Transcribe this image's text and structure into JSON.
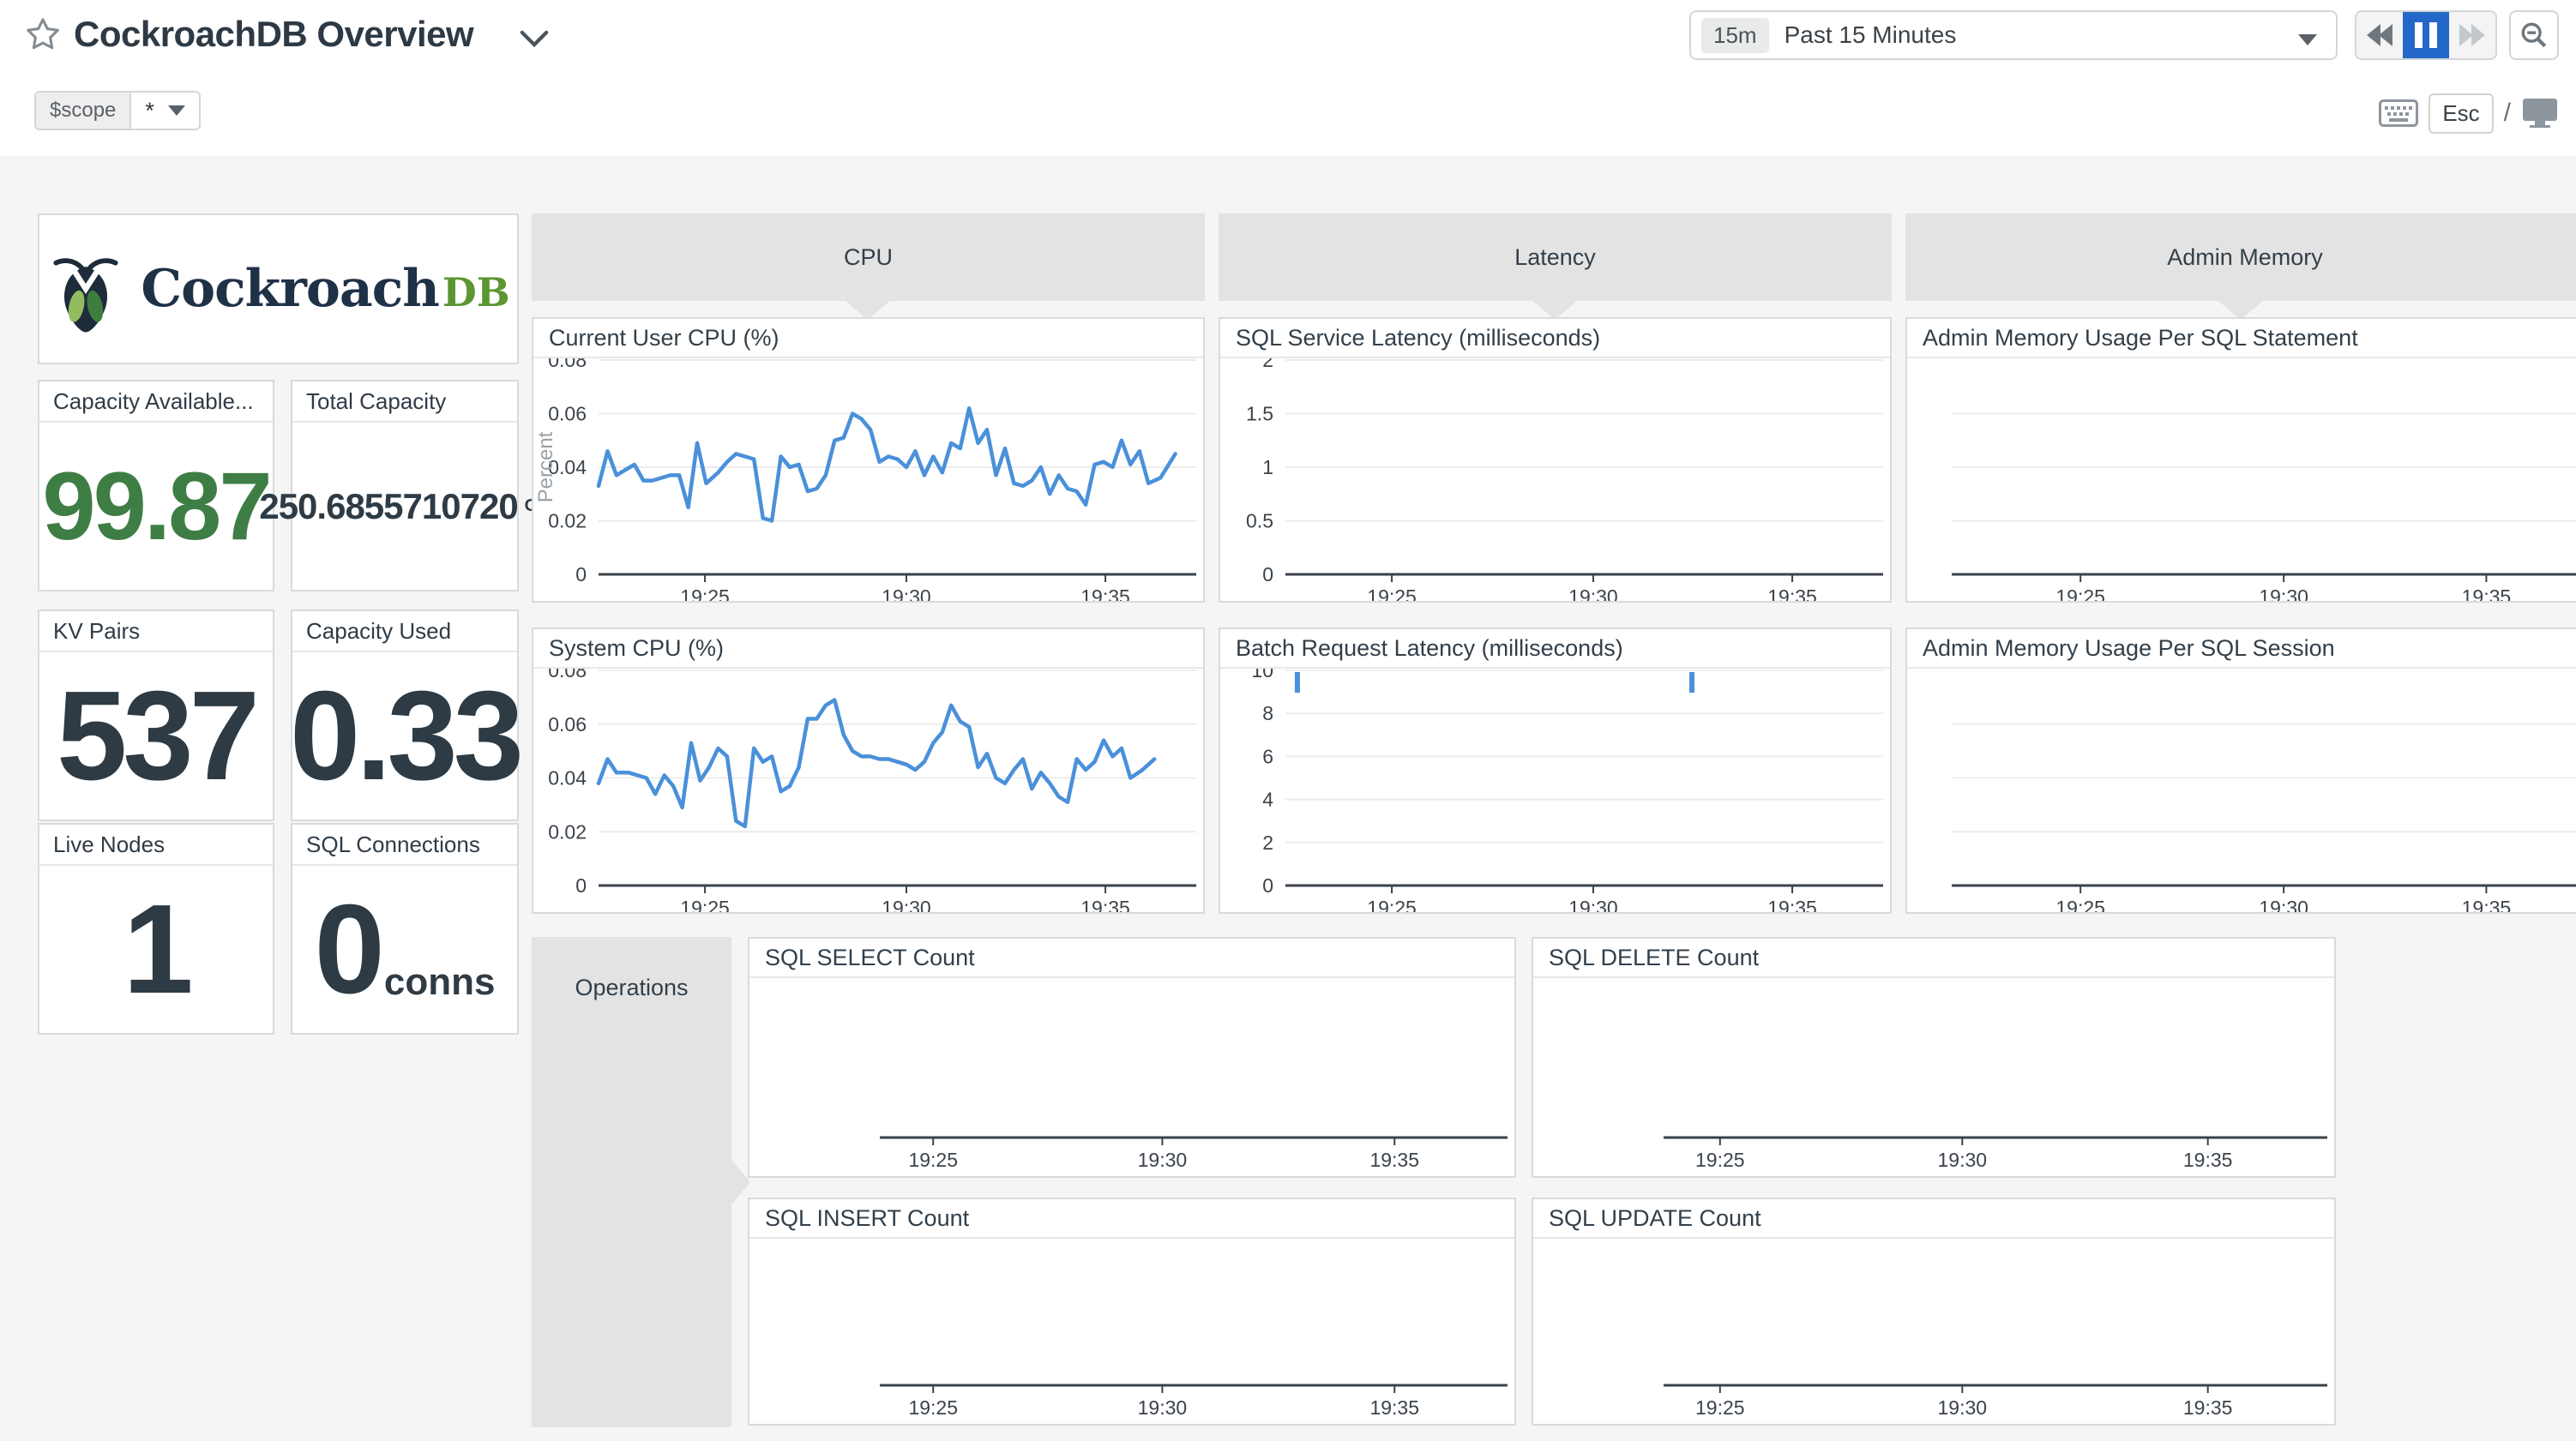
{
  "header": {
    "title": "CockroachDB Overview"
  },
  "scope": {
    "label": "$scope",
    "value": "*"
  },
  "time": {
    "badge": "15m",
    "label": "Past 15 Minutes"
  },
  "shortcuts": {
    "esc_key": "Esc",
    "slash": "/"
  },
  "logo": {
    "word": "Cockroach",
    "suffix": "DB"
  },
  "colors": {
    "accent_blue": "#2368c8",
    "line_blue": "#4a90da",
    "value_green": "#3e7e44",
    "value_dark": "#2e3b45",
    "group_gray": "#e3e3e4"
  },
  "groups": [
    {
      "label": "CPU"
    },
    {
      "label": "Latency"
    },
    {
      "label": "Admin Memory"
    },
    {
      "label": "Operations"
    }
  ],
  "stats": [
    {
      "label": "Capacity Available...",
      "value": "99.87",
      "unit": ""
    },
    {
      "label": "Total Capacity",
      "value": "250.6855710720",
      "unit": "GB"
    },
    {
      "label": "KV Pairs",
      "value": "537",
      "unit": ""
    },
    {
      "label": "Capacity Used",
      "value": "0.33",
      "unit": ""
    },
    {
      "label": "Live Nodes",
      "value": "1",
      "unit": ""
    },
    {
      "label": "SQL Connections",
      "value": "0",
      "unit": "conns"
    }
  ],
  "chart_data": [
    {
      "id": "current-user-cpu",
      "type": "line",
      "title": "Current User CPU (%)",
      "ylabel": "Percent",
      "ymax": 0.08,
      "yticks": [
        "0.08",
        "0.06",
        "0.04",
        "0.02",
        "0"
      ],
      "xticks": [
        "19:25",
        "19:30",
        "19:35"
      ],
      "x_range": "19:22 - 19:37",
      "grid": "labeled",
      "legend": "none",
      "series": [
        {
          "name": "user cpu",
          "color": "#4a90da",
          "points": [
            [
              0.0,
              0.033
            ],
            [
              0.015,
              0.046
            ],
            [
              0.03,
              0.037
            ],
            [
              0.045,
              0.039
            ],
            [
              0.06,
              0.041
            ],
            [
              0.075,
              0.035
            ],
            [
              0.09,
              0.035
            ],
            [
              0.105,
              0.036
            ],
            [
              0.12,
              0.037
            ],
            [
              0.135,
              0.037
            ],
            [
              0.15,
              0.025
            ],
            [
              0.165,
              0.049
            ],
            [
              0.18,
              0.034
            ],
            [
              0.2,
              0.038
            ],
            [
              0.215,
              0.042
            ],
            [
              0.23,
              0.045
            ],
            [
              0.245,
              0.044
            ],
            [
              0.26,
              0.043
            ],
            [
              0.275,
              0.021
            ],
            [
              0.29,
              0.02
            ],
            [
              0.305,
              0.044
            ],
            [
              0.32,
              0.04
            ],
            [
              0.335,
              0.041
            ],
            [
              0.35,
              0.031
            ],
            [
              0.365,
              0.032
            ],
            [
              0.38,
              0.037
            ],
            [
              0.395,
              0.05
            ],
            [
              0.41,
              0.051
            ],
            [
              0.425,
              0.06
            ],
            [
              0.44,
              0.058
            ],
            [
              0.455,
              0.054
            ],
            [
              0.47,
              0.042
            ],
            [
              0.485,
              0.044
            ],
            [
              0.5,
              0.043
            ],
            [
              0.515,
              0.04
            ],
            [
              0.53,
              0.046
            ],
            [
              0.545,
              0.037
            ],
            [
              0.56,
              0.044
            ],
            [
              0.575,
              0.038
            ],
            [
              0.59,
              0.049
            ],
            [
              0.605,
              0.047
            ],
            [
              0.62,
              0.062
            ],
            [
              0.635,
              0.049
            ],
            [
              0.65,
              0.054
            ],
            [
              0.665,
              0.037
            ],
            [
              0.68,
              0.047
            ],
            [
              0.695,
              0.034
            ],
            [
              0.71,
              0.033
            ],
            [
              0.725,
              0.035
            ],
            [
              0.74,
              0.04
            ],
            [
              0.755,
              0.03
            ],
            [
              0.77,
              0.037
            ],
            [
              0.785,
              0.032
            ],
            [
              0.8,
              0.031
            ],
            [
              0.815,
              0.026
            ],
            [
              0.83,
              0.041
            ],
            [
              0.845,
              0.042
            ],
            [
              0.86,
              0.04
            ],
            [
              0.875,
              0.05
            ],
            [
              0.89,
              0.041
            ],
            [
              0.905,
              0.046
            ],
            [
              0.92,
              0.034
            ],
            [
              0.94,
              0.036
            ],
            [
              0.965,
              0.045
            ]
          ]
        }
      ]
    },
    {
      "id": "system-cpu",
      "type": "line",
      "title": "System CPU (%)",
      "ymax": 0.08,
      "yticks": [
        "0.08",
        "0.06",
        "0.04",
        "0.02",
        "0"
      ],
      "xticks": [
        "19:25",
        "19:30",
        "19:35"
      ],
      "x_range": "19:22 - 19:37",
      "grid": "labeled",
      "legend": "none",
      "series": [
        {
          "name": "system cpu",
          "color": "#4a90da",
          "points": [
            [
              0.0,
              0.038
            ],
            [
              0.015,
              0.047
            ],
            [
              0.03,
              0.042
            ],
            [
              0.05,
              0.042
            ],
            [
              0.065,
              0.041
            ],
            [
              0.08,
              0.04
            ],
            [
              0.095,
              0.034
            ],
            [
              0.11,
              0.041
            ],
            [
              0.125,
              0.037
            ],
            [
              0.14,
              0.029
            ],
            [
              0.155,
              0.053
            ],
            [
              0.17,
              0.039
            ],
            [
              0.185,
              0.044
            ],
            [
              0.2,
              0.051
            ],
            [
              0.215,
              0.048
            ],
            [
              0.23,
              0.024
            ],
            [
              0.245,
              0.022
            ],
            [
              0.26,
              0.051
            ],
            [
              0.275,
              0.046
            ],
            [
              0.29,
              0.048
            ],
            [
              0.305,
              0.035
            ],
            [
              0.32,
              0.037
            ],
            [
              0.335,
              0.044
            ],
            [
              0.35,
              0.062
            ],
            [
              0.365,
              0.062
            ],
            [
              0.38,
              0.067
            ],
            [
              0.395,
              0.069
            ],
            [
              0.41,
              0.056
            ],
            [
              0.425,
              0.05
            ],
            [
              0.44,
              0.048
            ],
            [
              0.455,
              0.048
            ],
            [
              0.47,
              0.047
            ],
            [
              0.485,
              0.047
            ],
            [
              0.5,
              0.046
            ],
            [
              0.515,
              0.045
            ],
            [
              0.53,
              0.043
            ],
            [
              0.545,
              0.046
            ],
            [
              0.56,
              0.053
            ],
            [
              0.575,
              0.057
            ],
            [
              0.59,
              0.067
            ],
            [
              0.605,
              0.061
            ],
            [
              0.62,
              0.059
            ],
            [
              0.635,
              0.044
            ],
            [
              0.65,
              0.049
            ],
            [
              0.665,
              0.04
            ],
            [
              0.68,
              0.038
            ],
            [
              0.695,
              0.043
            ],
            [
              0.71,
              0.047
            ],
            [
              0.725,
              0.036
            ],
            [
              0.74,
              0.042
            ],
            [
              0.755,
              0.038
            ],
            [
              0.77,
              0.033
            ],
            [
              0.785,
              0.031
            ],
            [
              0.8,
              0.047
            ],
            [
              0.815,
              0.043
            ],
            [
              0.83,
              0.046
            ],
            [
              0.845,
              0.054
            ],
            [
              0.86,
              0.048
            ],
            [
              0.875,
              0.051
            ],
            [
              0.89,
              0.04
            ],
            [
              0.91,
              0.043
            ],
            [
              0.93,
              0.047
            ]
          ]
        }
      ]
    },
    {
      "id": "sql-service-latency",
      "type": "line",
      "title": "SQL Service Latency (milliseconds)",
      "ymax": 2,
      "yticks": [
        "2",
        "1.5",
        "1",
        "0.5",
        "0"
      ],
      "xticks": [
        "19:25",
        "19:30",
        "19:35"
      ],
      "x_range": "19:22 - 19:37",
      "grid": "labeled",
      "legend": "none",
      "series": []
    },
    {
      "id": "batch-request-latency",
      "type": "line",
      "title": "Batch Request Latency (milliseconds)",
      "ymax": 10,
      "yticks": [
        "10",
        "8",
        "6",
        "4",
        "2",
        "0"
      ],
      "xticks": [
        "19:25",
        "19:30",
        "19:35"
      ],
      "x_range": "19:22 - 19:37",
      "grid": "labeled",
      "legend": "none",
      "series": [],
      "spikes": [
        {
          "x": 0.02,
          "value": 10
        },
        {
          "x": 0.68,
          "value": 10
        }
      ]
    },
    {
      "id": "admin-memory-per-sql-statement",
      "type": "line",
      "title": "Admin Memory Usage Per SQL Statement",
      "yticks": [],
      "xticks": [
        "19:25",
        "19:30",
        "19:35"
      ],
      "x_range": "19:22 - 19:37",
      "grid": "plain",
      "legend": "none",
      "series": []
    },
    {
      "id": "admin-memory-per-sql-session",
      "type": "line",
      "title": "Admin Memory Usage Per SQL Session",
      "yticks": [],
      "xticks": [
        "19:25",
        "19:30",
        "19:35"
      ],
      "x_range": "19:22 - 19:37",
      "grid": "plain",
      "legend": "none",
      "series": []
    },
    {
      "id": "sql-select-count",
      "type": "line",
      "title": "SQL SELECT Count",
      "yticks": [],
      "xticks": [
        "19:25",
        "19:30",
        "19:35"
      ],
      "x_range": "19:22 - 19:37",
      "grid": "none",
      "legend": "none",
      "series": []
    },
    {
      "id": "sql-delete-count",
      "type": "line",
      "title": "SQL DELETE Count",
      "yticks": [],
      "xticks": [
        "19:25",
        "19:30",
        "19:35"
      ],
      "x_range": "19:22 - 19:37",
      "grid": "none",
      "legend": "none",
      "series": []
    },
    {
      "id": "sql-insert-count",
      "type": "line",
      "title": "SQL INSERT Count",
      "yticks": [],
      "xticks": [
        "19:25",
        "19:30",
        "19:35"
      ],
      "x_range": "19:22 - 19:37",
      "grid": "none",
      "legend": "none",
      "series": []
    },
    {
      "id": "sql-update-count",
      "type": "line",
      "title": "SQL UPDATE Count",
      "yticks": [],
      "xticks": [
        "19:25",
        "19:30",
        "19:35"
      ],
      "x_range": "19:22 - 19:37",
      "grid": "none",
      "legend": "none",
      "series": []
    }
  ]
}
